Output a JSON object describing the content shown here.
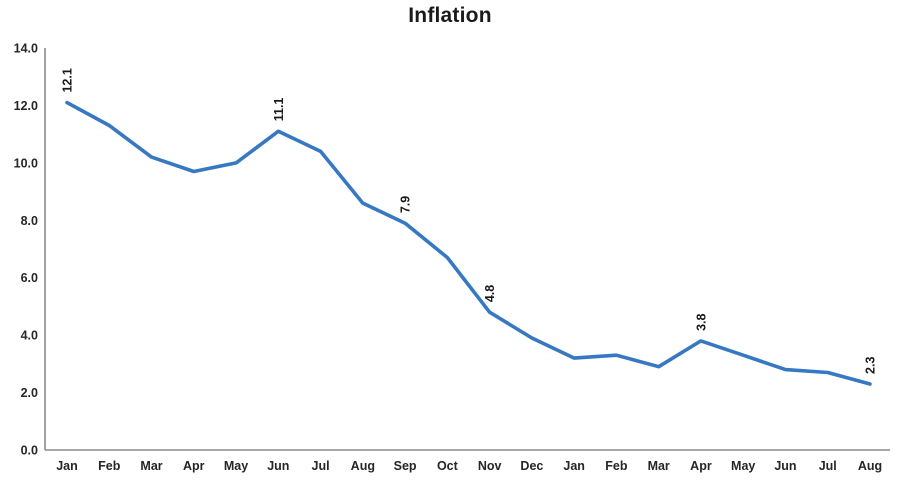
{
  "chart_data": {
    "type": "line",
    "title": "Inflation",
    "categories": [
      "Jan",
      "Feb",
      "Mar",
      "Apr",
      "May",
      "Jun",
      "Jul",
      "Aug",
      "Sep",
      "Oct",
      "Nov",
      "Dec",
      "Jan",
      "Feb",
      "Mar",
      "Apr",
      "May",
      "Jun",
      "Jul",
      "Aug"
    ],
    "series": [
      {
        "name": "Inflation",
        "values": [
          12.1,
          11.3,
          10.2,
          9.7,
          10.0,
          11.1,
          10.4,
          8.6,
          7.9,
          6.7,
          4.8,
          3.9,
          3.2,
          3.3,
          2.9,
          3.8,
          3.3,
          2.8,
          2.7,
          2.3
        ]
      }
    ],
    "point_labels": [
      "12.1",
      null,
      null,
      null,
      null,
      "11.1",
      null,
      null,
      "7.9",
      null,
      "4.8",
      null,
      null,
      null,
      null,
      "3.8",
      null,
      null,
      null,
      "2.3"
    ],
    "ylim": [
      0,
      14
    ],
    "yticks": [
      0,
      2,
      4,
      6,
      8,
      10,
      12,
      14
    ],
    "ytick_labels": [
      "0.0",
      "2.0",
      "4.0",
      "6.0",
      "8.0",
      "10.0",
      "12.0",
      "14.0"
    ],
    "grid": false,
    "legend": "none",
    "colors": {
      "line": "#3778C3",
      "axis": "#8C8C8C",
      "tick_text": "#262626",
      "title_text": "#1a1a1a"
    }
  }
}
